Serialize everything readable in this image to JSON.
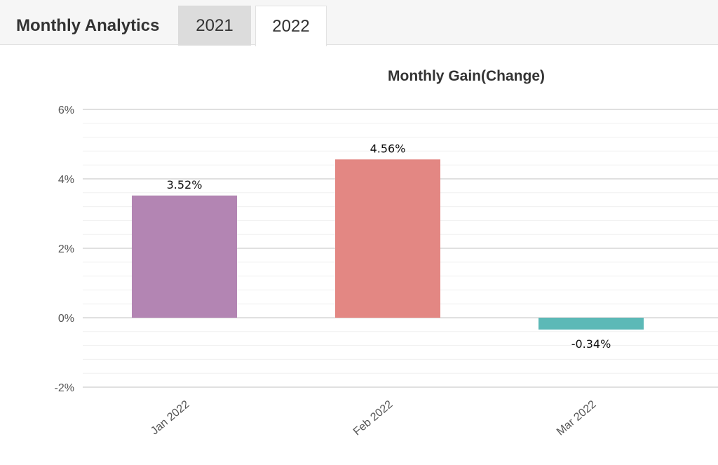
{
  "header": {
    "title": "Monthly Analytics",
    "tabs": [
      {
        "label": "2021",
        "active": false
      },
      {
        "label": "2022",
        "active": true
      }
    ]
  },
  "chart_data": {
    "type": "bar",
    "title": "Monthly Gain(Change)",
    "xlabel": "",
    "ylabel": "",
    "categories": [
      "Jan 2022",
      "Feb 2022",
      "Mar 2022"
    ],
    "values": [
      3.52,
      4.56,
      -0.34
    ],
    "data_labels": [
      "3.52%",
      "4.56%",
      "-0.34%"
    ],
    "colors": [
      "#b385b3",
      "#e38783",
      "#5cb9b7"
    ],
    "ylim": [
      -2,
      6
    ],
    "yticks": [
      6,
      4,
      2,
      0,
      -2
    ],
    "ytick_labels": [
      "6%",
      "4%",
      "2%",
      "0%",
      "-2%"
    ],
    "grid": true,
    "legend": "none"
  }
}
